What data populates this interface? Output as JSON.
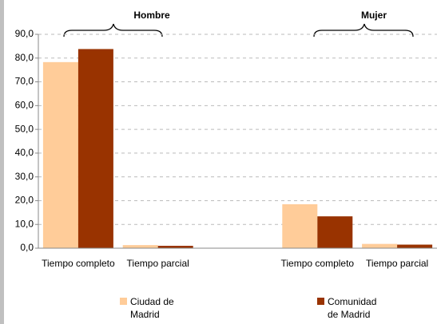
{
  "chart_data": {
    "type": "bar",
    "groups": [
      "Hombre",
      "Mujer"
    ],
    "categories": [
      "Tiempo completo",
      "Tiempo parcial",
      null,
      "Tiempo completo",
      "Tiempo parcial"
    ],
    "series": [
      {
        "name": "Ciudad de Madrid",
        "color": "#ffcc99",
        "values": [
          78.3,
          1.3,
          null,
          18.5,
          1.8
        ]
      },
      {
        "name": "Comunidad de Madrid",
        "color": "#993300",
        "values": [
          83.8,
          1.0,
          null,
          13.4,
          1.5
        ]
      }
    ],
    "ylim": [
      0,
      90
    ],
    "yticks": [
      {
        "value": 0,
        "label": "0,0"
      },
      {
        "value": 10,
        "label": "10,0"
      },
      {
        "value": 20,
        "label": "20,0"
      },
      {
        "value": 30,
        "label": "30,0"
      },
      {
        "value": 40,
        "label": "40,0"
      },
      {
        "value": 50,
        "label": "50,0"
      },
      {
        "value": 60,
        "label": "60,0"
      },
      {
        "value": 70,
        "label": "70,0"
      },
      {
        "value": 80,
        "label": "80,0"
      },
      {
        "value": 90,
        "label": "90,0"
      }
    ],
    "grid": true
  }
}
